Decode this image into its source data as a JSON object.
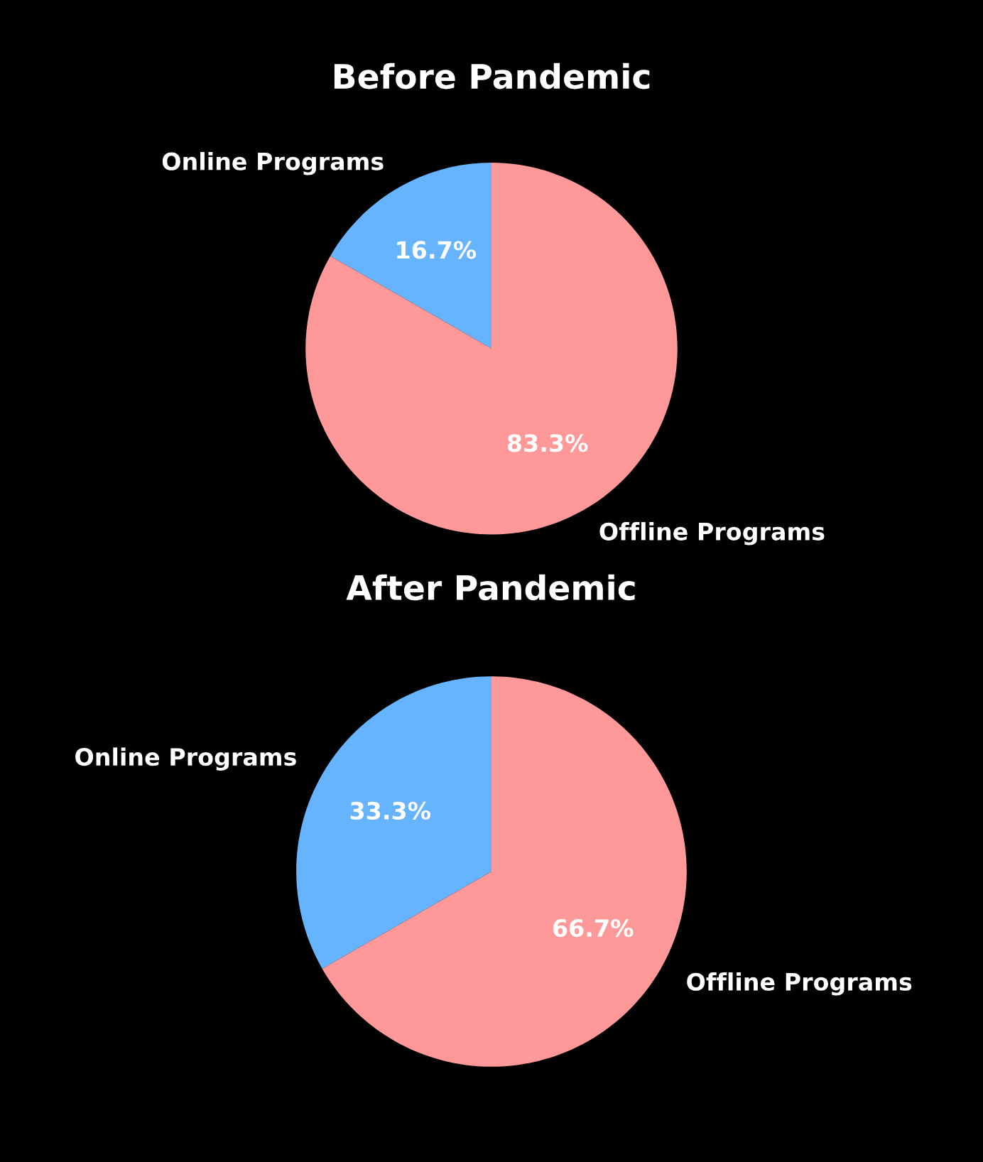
{
  "chart_data": [
    {
      "type": "pie",
      "title": "Before Pandemic",
      "categories": [
        "Online Programs",
        "Offline Programs"
      ],
      "values": [
        16.7,
        83.3
      ],
      "colors": [
        "#66b3ff",
        "#ff9999"
      ],
      "value_labels": [
        "16.7%",
        "83.3%"
      ]
    },
    {
      "type": "pie",
      "title": "After Pandemic",
      "categories": [
        "Online Programs",
        "Offline Programs"
      ],
      "values": [
        33.3,
        66.7
      ],
      "colors": [
        "#66b3ff",
        "#ff9999"
      ],
      "value_labels": [
        "33.3%",
        "66.7%"
      ]
    }
  ]
}
